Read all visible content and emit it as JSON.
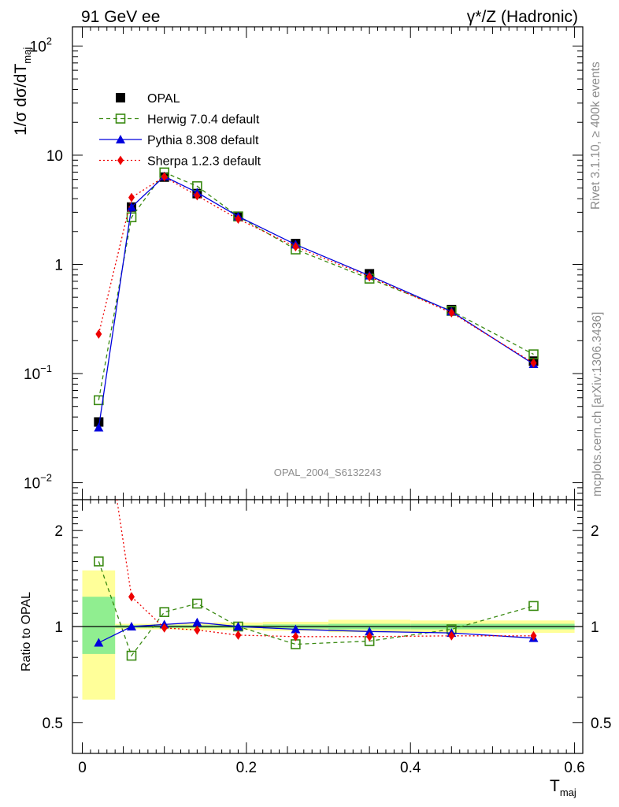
{
  "header": {
    "left": "91 GeV ee",
    "right": "γ*/Z (Hadronic)"
  },
  "side_text": {
    "upper": "Rivet 3.1.10, ≥ 400k events",
    "lower": "mcplots.cern.ch [arXiv:1306.3436]"
  },
  "analysis_label": "OPAL_2004_S6132243",
  "chart_data": [
    {
      "panel": "main",
      "type": "scatter",
      "ylabel": "1/σ dσ/dT_maj",
      "yscale": "log",
      "ylim": [
        0.007,
        150
      ],
      "xlim": [
        -0.012,
        0.61
      ],
      "y_ticks": [
        {
          "value": 0.01,
          "base": "10",
          "exp": "−2"
        },
        {
          "value": 0.1,
          "base": "10",
          "exp": "−1"
        },
        {
          "value": 1,
          "base": "1",
          "exp": ""
        },
        {
          "value": 10,
          "base": "10",
          "exp": ""
        },
        {
          "value": 100,
          "base": "10",
          "exp": "2"
        }
      ],
      "legend_position": "top-left",
      "series": [
        {
          "name": "OPAL",
          "color": "#000000",
          "marker": "square-filled",
          "line": "none",
          "x": [
            0.02,
            0.06,
            0.1,
            0.14,
            0.19,
            0.26,
            0.35,
            0.45,
            0.55
          ],
          "y": [
            0.036,
            3.35,
            6.3,
            4.45,
            2.75,
            1.55,
            0.82,
            0.385,
            0.13
          ]
        },
        {
          "name": "Herwig 7.0.4 default",
          "color": "#3a8a12",
          "marker": "square-open",
          "line": "dashed",
          "x": [
            0.02,
            0.06,
            0.1,
            0.14,
            0.19,
            0.26,
            0.35,
            0.45,
            0.55
          ],
          "y": [
            0.057,
            2.7,
            6.95,
            5.2,
            2.75,
            1.37,
            0.74,
            0.375,
            0.15
          ]
        },
        {
          "name": "Pythia 8.308 default",
          "color": "#0000dd",
          "marker": "triangle",
          "line": "solid",
          "x": [
            0.02,
            0.06,
            0.1,
            0.14,
            0.19,
            0.26,
            0.35,
            0.45,
            0.55
          ],
          "y": [
            0.032,
            3.35,
            6.4,
            4.55,
            2.75,
            1.52,
            0.79,
            0.37,
            0.122
          ]
        },
        {
          "name": "Sherpa 1.2.3 default",
          "color": "#ee0000",
          "marker": "diamond",
          "line": "dotted",
          "x": [
            0.02,
            0.06,
            0.1,
            0.14,
            0.19,
            0.26,
            0.35,
            0.45,
            0.55
          ],
          "y": [
            0.23,
            4.1,
            6.35,
            4.25,
            2.6,
            1.45,
            0.77,
            0.36,
            0.125
          ]
        }
      ]
    },
    {
      "panel": "ratio",
      "type": "line",
      "ylabel": "Ratio to OPAL",
      "xlabel": "T_maj",
      "yscale": "log",
      "ylim": [
        0.4,
        2.5
      ],
      "xlim": [
        -0.012,
        0.61
      ],
      "y_ticks": [
        0.5,
        1,
        2
      ],
      "x_ticks": [
        0,
        0.2,
        0.4,
        0.6
      ],
      "reference": 1,
      "bands": [
        {
          "x0": 0.0,
          "x1": 0.04,
          "stat": [
            0.82,
            1.24
          ],
          "total": [
            0.59,
            1.5
          ]
        },
        {
          "x0": 0.04,
          "x1": 0.08,
          "stat": [
            0.99,
            1.01
          ],
          "total": [
            0.98,
            1.02
          ]
        },
        {
          "x0": 0.08,
          "x1": 0.12,
          "stat": [
            0.99,
            1.01
          ],
          "total": [
            0.98,
            1.02
          ]
        },
        {
          "x0": 0.12,
          "x1": 0.16,
          "stat": [
            0.99,
            1.01
          ],
          "total": [
            0.975,
            1.025
          ]
        },
        {
          "x0": 0.16,
          "x1": 0.22,
          "stat": [
            0.99,
            1.01
          ],
          "total": [
            0.975,
            1.03
          ]
        },
        {
          "x0": 0.22,
          "x1": 0.3,
          "stat": [
            0.985,
            1.015
          ],
          "total": [
            0.97,
            1.035
          ]
        },
        {
          "x0": 0.3,
          "x1": 0.4,
          "stat": [
            0.98,
            1.02
          ],
          "total": [
            0.96,
            1.05
          ]
        },
        {
          "x0": 0.4,
          "x1": 0.6,
          "stat": [
            0.98,
            1.02
          ],
          "total": [
            0.955,
            1.045
          ]
        }
      ],
      "series": [
        {
          "name": "Herwig 7.0.4 default",
          "color": "#3a8a12",
          "marker": "square-open",
          "line": "dashed",
          "x": [
            0.02,
            0.06,
            0.1,
            0.14,
            0.19,
            0.26,
            0.35,
            0.45,
            0.55
          ],
          "y": [
            1.6,
            0.81,
            1.11,
            1.18,
            1.0,
            0.88,
            0.9,
            0.98,
            1.16
          ]
        },
        {
          "name": "Pythia 8.308 default",
          "color": "#0000dd",
          "marker": "triangle",
          "line": "solid",
          "x": [
            0.02,
            0.06,
            0.1,
            0.14,
            0.19,
            0.26,
            0.35,
            0.45,
            0.55
          ],
          "y": [
            0.89,
            1.0,
            1.015,
            1.03,
            1.0,
            0.98,
            0.965,
            0.955,
            0.92
          ]
        },
        {
          "name": "Sherpa 1.2.3 default",
          "color": "#ee0000",
          "marker": "diamond",
          "line": "dotted",
          "x": [
            0.02,
            0.06,
            0.1,
            0.14,
            0.19,
            0.26,
            0.35,
            0.45,
            0.55
          ],
          "y": [
            6.0,
            1.24,
            0.99,
            0.975,
            0.94,
            0.93,
            0.93,
            0.935,
            0.935
          ]
        }
      ]
    }
  ]
}
